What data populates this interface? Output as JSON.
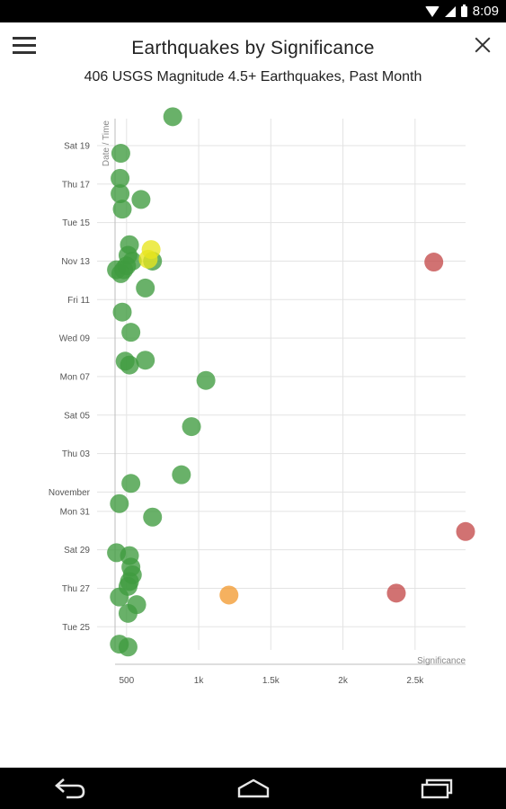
{
  "status_bar": {
    "time": "8:09"
  },
  "header": {
    "title": "Earthquakes by Significance",
    "subtitle": "406 USGS Magnitude 4.5+ Earthquakes, Past Month"
  },
  "chart_data": {
    "type": "scatter",
    "title": "Earthquakes by Significance",
    "subtitle": "406 USGS Magnitude 4.5+ Earthquakes, Past Month",
    "xlabel": "Significance",
    "ylabel": "Date / Time",
    "xlim": [
      420,
      2850
    ],
    "x_ticks": [
      {
        "value": 500,
        "label": "500"
      },
      {
        "value": 1000,
        "label": "1k"
      },
      {
        "value": 1500,
        "label": "1.5k"
      },
      {
        "value": 2000,
        "label": "2k"
      },
      {
        "value": 2500,
        "label": "2.5k"
      }
    ],
    "y_ticks": [
      {
        "value": 24.0,
        "label": "Tue 25"
      },
      {
        "value": 26.0,
        "label": "Thu 27"
      },
      {
        "value": 28.0,
        "label": "Sat 29"
      },
      {
        "value": 30.0,
        "label": "Mon 31"
      },
      {
        "value": 31.0,
        "label": "November"
      },
      {
        "value": 33.0,
        "label": "Thu 03"
      },
      {
        "value": 35.0,
        "label": "Sat 05"
      },
      {
        "value": 37.0,
        "label": "Mon 07"
      },
      {
        "value": 39.0,
        "label": "Wed 09"
      },
      {
        "value": 41.0,
        "label": "Fri 11"
      },
      {
        "value": 43.0,
        "label": "Nov 13"
      },
      {
        "value": 45.0,
        "label": "Tue 15"
      },
      {
        "value": 47.0,
        "label": "Thu 17"
      },
      {
        "value": 49.0,
        "label": "Sat 19"
      }
    ],
    "ylim": [
      22.8,
      50.4
    ],
    "grid": true,
    "points": [
      {
        "x": 820,
        "y": 50.5,
        "color": "#3f9b3f"
      },
      {
        "x": 460,
        "y": 48.6,
        "color": "#3f9b3f"
      },
      {
        "x": 455,
        "y": 47.3,
        "color": "#3f9b3f"
      },
      {
        "x": 455,
        "y": 46.5,
        "color": "#3f9b3f"
      },
      {
        "x": 600,
        "y": 46.2,
        "color": "#3f9b3f"
      },
      {
        "x": 470,
        "y": 45.7,
        "color": "#3f9b3f"
      },
      {
        "x": 520,
        "y": 43.85,
        "color": "#3f9b3f"
      },
      {
        "x": 510,
        "y": 43.3,
        "color": "#3f9b3f"
      },
      {
        "x": 540,
        "y": 43.0,
        "color": "#3f9b3f"
      },
      {
        "x": 500,
        "y": 42.75,
        "color": "#3f9b3f"
      },
      {
        "x": 480,
        "y": 42.55,
        "color": "#3f9b3f"
      },
      {
        "x": 430,
        "y": 42.55,
        "color": "#3f9b3f"
      },
      {
        "x": 460,
        "y": 42.35,
        "color": "#3f9b3f"
      },
      {
        "x": 680,
        "y": 43.0,
        "color": "#3f9b3f"
      },
      {
        "x": 670,
        "y": 43.6,
        "color": "#e8e51e"
      },
      {
        "x": 650,
        "y": 43.1,
        "color": "#e8e51e"
      },
      {
        "x": 630,
        "y": 41.6,
        "color": "#3f9b3f"
      },
      {
        "x": 470,
        "y": 40.35,
        "color": "#3f9b3f"
      },
      {
        "x": 530,
        "y": 39.3,
        "color": "#3f9b3f"
      },
      {
        "x": 490,
        "y": 37.8,
        "color": "#3f9b3f"
      },
      {
        "x": 520,
        "y": 37.6,
        "color": "#3f9b3f"
      },
      {
        "x": 630,
        "y": 37.85,
        "color": "#3f9b3f"
      },
      {
        "x": 1050,
        "y": 36.8,
        "color": "#3f9b3f"
      },
      {
        "x": 950,
        "y": 34.4,
        "color": "#3f9b3f"
      },
      {
        "x": 880,
        "y": 31.9,
        "color": "#3f9b3f"
      },
      {
        "x": 530,
        "y": 31.45,
        "color": "#3f9b3f"
      },
      {
        "x": 450,
        "y": 30.4,
        "color": "#3f9b3f"
      },
      {
        "x": 680,
        "y": 29.7,
        "color": "#3f9b3f"
      },
      {
        "x": 430,
        "y": 27.85,
        "color": "#3f9b3f"
      },
      {
        "x": 520,
        "y": 27.7,
        "color": "#3f9b3f"
      },
      {
        "x": 530,
        "y": 27.1,
        "color": "#3f9b3f"
      },
      {
        "x": 540,
        "y": 26.7,
        "color": "#3f9b3f"
      },
      {
        "x": 520,
        "y": 26.35,
        "color": "#3f9b3f"
      },
      {
        "x": 510,
        "y": 26.1,
        "color": "#3f9b3f"
      },
      {
        "x": 450,
        "y": 25.55,
        "color": "#3f9b3f"
      },
      {
        "x": 570,
        "y": 25.15,
        "color": "#3f9b3f"
      },
      {
        "x": 510,
        "y": 24.7,
        "color": "#3f9b3f"
      },
      {
        "x": 450,
        "y": 23.1,
        "color": "#3f9b3f"
      },
      {
        "x": 510,
        "y": 22.95,
        "color": "#3f9b3f"
      },
      {
        "x": 2630,
        "y": 42.95,
        "color": "#c44a4a"
      },
      {
        "x": 2850,
        "y": 28.95,
        "color": "#c44a4a"
      },
      {
        "x": 2370,
        "y": 25.75,
        "color": "#c44a4a"
      },
      {
        "x": 1210,
        "y": 25.65,
        "color": "#f29b32"
      }
    ]
  }
}
